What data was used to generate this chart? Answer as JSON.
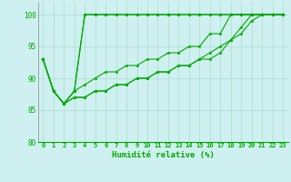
{
  "title": "",
  "xlabel": "Humidité relative (%)",
  "ylabel": "",
  "xlim": [
    -0.5,
    23.5
  ],
  "ylim": [
    80,
    102
  ],
  "yticks": [
    80,
    85,
    90,
    95,
    100
  ],
  "xticks": [
    0,
    1,
    2,
    3,
    4,
    5,
    6,
    7,
    8,
    9,
    10,
    11,
    12,
    13,
    14,
    15,
    16,
    17,
    18,
    19,
    20,
    21,
    22,
    23
  ],
  "bg_color": "#cff0f0",
  "grid_color": "#aaddcc",
  "line_color": "#00aa00",
  "series": [
    [
      93,
      88,
      86,
      88,
      100,
      100,
      100,
      100,
      100,
      100,
      100,
      100,
      100,
      100,
      100,
      100,
      100,
      100,
      100,
      100,
      100,
      100,
      100,
      100
    ],
    [
      93,
      88,
      86,
      88,
      100,
      100,
      100,
      100,
      100,
      100,
      100,
      100,
      100,
      100,
      100,
      100,
      100,
      100,
      100,
      100,
      100,
      100,
      100,
      100
    ],
    [
      93,
      88,
      86,
      88,
      89,
      90,
      91,
      91,
      92,
      92,
      93,
      93,
      94,
      94,
      95,
      95,
      97,
      97,
      100,
      100,
      100,
      100,
      100,
      100
    ],
    [
      93,
      88,
      86,
      87,
      87,
      88,
      88,
      89,
      89,
      90,
      90,
      91,
      91,
      92,
      92,
      93,
      94,
      95,
      96,
      98,
      100,
      100,
      100,
      100
    ],
    [
      93,
      88,
      86,
      87,
      87,
      88,
      88,
      89,
      89,
      90,
      90,
      91,
      91,
      92,
      92,
      93,
      93,
      94,
      96,
      97,
      99,
      100,
      100,
      100
    ]
  ]
}
